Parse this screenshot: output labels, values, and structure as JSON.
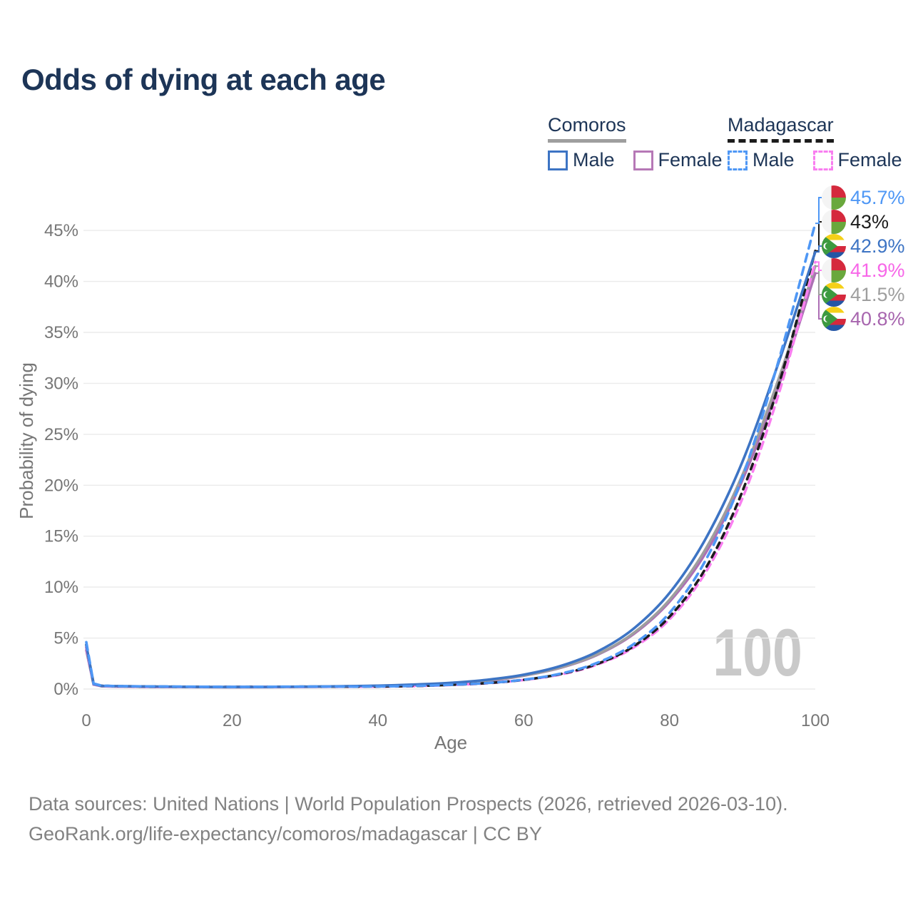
{
  "title": "Odds of dying at each age",
  "watermark": "100",
  "legend": {
    "groups": [
      {
        "label": "Comoros",
        "line_style": "solid",
        "underline_color": "#9e9e9e",
        "items": [
          {
            "label": "Male",
            "color": "#3d74c4",
            "line_style": "solid"
          },
          {
            "label": "Female",
            "color": "#b678b6",
            "line_style": "solid"
          }
        ]
      },
      {
        "label": "Madagascar",
        "line_style": "dashed",
        "underline_color": "#1c1c1c",
        "items": [
          {
            "label": "Male",
            "color": "#4e97f5",
            "line_style": "dashed"
          },
          {
            "label": "Female",
            "color": "#f97ef0",
            "line_style": "dashed"
          }
        ]
      }
    ]
  },
  "footer": {
    "line1": "Data sources: United Nations | World Population Prospects (2026, retrieved 2026-03-10).",
    "line2": "GeoRank.org/life-expectancy/comoros/madagascar | CC BY"
  },
  "chart_data": {
    "type": "line",
    "title": "Odds of dying at each age",
    "xlabel": "Age",
    "ylabel": "Probability of dying",
    "xlim": [
      0,
      100
    ],
    "ylim": [
      0,
      47
    ],
    "x_ticks": [
      0,
      20,
      40,
      60,
      80,
      100
    ],
    "y_ticks": [
      0,
      5,
      10,
      15,
      20,
      25,
      30,
      35,
      40,
      45
    ],
    "y_tick_suffix": "%",
    "grid": "horizontal",
    "hover_age_marker": "100",
    "ages": [
      0,
      1,
      2,
      3,
      5,
      10,
      20,
      30,
      40,
      45,
      50,
      55,
      60,
      65,
      70,
      75,
      80,
      85,
      90,
      95,
      100
    ],
    "series": [
      {
        "id": "comoros_female",
        "name": "Comoros Female",
        "country": "Comoros",
        "sex": "female",
        "color": "#ad6fb5",
        "dash": null,
        "end_label": "40.8%",
        "label_color": "#a765ae",
        "flag": "comoros",
        "label_row": 5,
        "values": [
          3.8,
          0.44,
          0.29,
          0.26,
          0.23,
          0.2,
          0.18,
          0.21,
          0.29,
          0.38,
          0.53,
          0.8,
          1.31,
          2.07,
          3.32,
          5.35,
          8.56,
          13.4,
          20.5,
          29.8,
          40.8
        ]
      },
      {
        "id": "comoros_both",
        "name": "Comoros Both sexes",
        "country": "Comoros",
        "sex": "both",
        "color": "#9e9e9e",
        "dash": null,
        "end_label": "41.5%",
        "label_color": "#9e9e9e",
        "flag": "comoros",
        "label_row": 4,
        "values": [
          4.05,
          0.47,
          0.31,
          0.28,
          0.25,
          0.22,
          0.19,
          0.22,
          0.31,
          0.41,
          0.57,
          0.85,
          1.32,
          2.1,
          3.37,
          5.46,
          8.76,
          13.8,
          21.0,
          30.5,
          41.5
        ]
      },
      {
        "id": "madagascar_female",
        "name": "Madagascar Female",
        "country": "Madagascar",
        "sex": "female",
        "color": "#f97ef0",
        "dash": "10 7",
        "end_label": "41.9%",
        "label_color": "#f766e8",
        "flag": "madagascar",
        "label_row": 3,
        "values": [
          4.1,
          0.48,
          0.31,
          0.28,
          0.25,
          0.22,
          0.2,
          0.22,
          0.24,
          0.29,
          0.4,
          0.57,
          0.89,
          1.42,
          2.37,
          4.03,
          6.84,
          11.5,
          18.7,
          29.0,
          41.9
        ]
      },
      {
        "id": "madagascar_both",
        "name": "Madagascar Both sexes",
        "country": "Madagascar",
        "sex": "both",
        "color": "#1c1c1c",
        "dash": "8 7",
        "end_label": "43%",
        "label_color": "#1c1c1c",
        "flag": "madagascar",
        "label_row": 1,
        "values": [
          4.35,
          0.51,
          0.33,
          0.3,
          0.27,
          0.24,
          0.21,
          0.23,
          0.25,
          0.3,
          0.41,
          0.58,
          0.9,
          1.46,
          2.44,
          4.16,
          7.09,
          11.9,
          19.4,
          29.9,
          43.0
        ]
      },
      {
        "id": "comoros_male",
        "name": "Comoros Male",
        "country": "Comoros",
        "sex": "male",
        "color": "#3d74c4",
        "dash": null,
        "end_label": "42.9%",
        "label_color": "#3d74c4",
        "flag": "comoros",
        "label_row": 2,
        "values": [
          4.3,
          0.5,
          0.33,
          0.3,
          0.27,
          0.24,
          0.2,
          0.23,
          0.33,
          0.44,
          0.61,
          0.91,
          1.41,
          2.25,
          3.63,
          5.88,
          9.42,
          14.8,
          22.3,
          32.1,
          42.9
        ]
      },
      {
        "id": "madagascar_male",
        "name": "Madagascar Male",
        "country": "Madagascar",
        "sex": "male",
        "color": "#4e97f5",
        "dash": "11 8",
        "end_label": "45.7%",
        "label_color": "#4e97f5",
        "flag": "madagascar",
        "label_row": 0,
        "values": [
          4.6,
          0.54,
          0.35,
          0.31,
          0.28,
          0.25,
          0.22,
          0.24,
          0.25,
          0.31,
          0.41,
          0.59,
          0.92,
          1.5,
          2.55,
          4.37,
          7.47,
          12.7,
          20.8,
          32.3,
          45.7
        ]
      }
    ]
  }
}
